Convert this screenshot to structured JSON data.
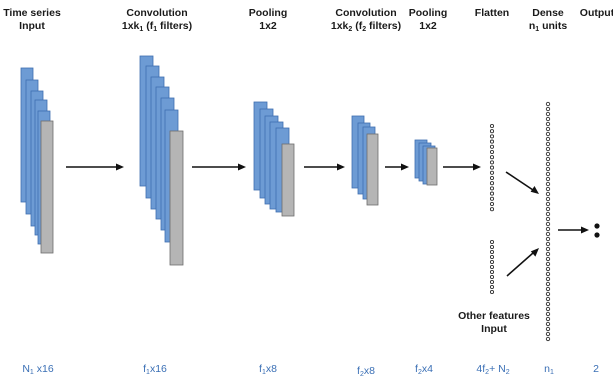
{
  "headers": {
    "input": [
      "Time series",
      "Input"
    ],
    "conv1": [
      "Convolution",
      "1xk",
      "1",
      " (f",
      "1",
      " filters)"
    ],
    "pool1": [
      "Pooling",
      "1x2"
    ],
    "conv2": [
      "Convolution",
      "1xk",
      "2",
      " (f",
      "2",
      " filters)"
    ],
    "pool2": [
      "Pooling",
      "1x2"
    ],
    "flatten": "Flatten",
    "dense": [
      "Dense",
      "n",
      "1",
      " units"
    ],
    "output": "Output",
    "other": [
      "Other features",
      "Input"
    ]
  },
  "dims": {
    "input": [
      "N",
      "1",
      " x16"
    ],
    "conv1": [
      "f",
      "1",
      "x16"
    ],
    "pool1": [
      "f",
      "1",
      "x8"
    ],
    "conv2": [
      "f",
      "2",
      "x8"
    ],
    "pool2": [
      "f",
      "2",
      "x4"
    ],
    "flatten": [
      "4f",
      "2",
      "+ N",
      "2"
    ],
    "dense": [
      "n",
      "1"
    ],
    "output": "2"
  },
  "colors": {
    "blue": "#6d9bd4",
    "grey": "#b5b5b5",
    "dim_text": "#3a6fb5"
  }
}
